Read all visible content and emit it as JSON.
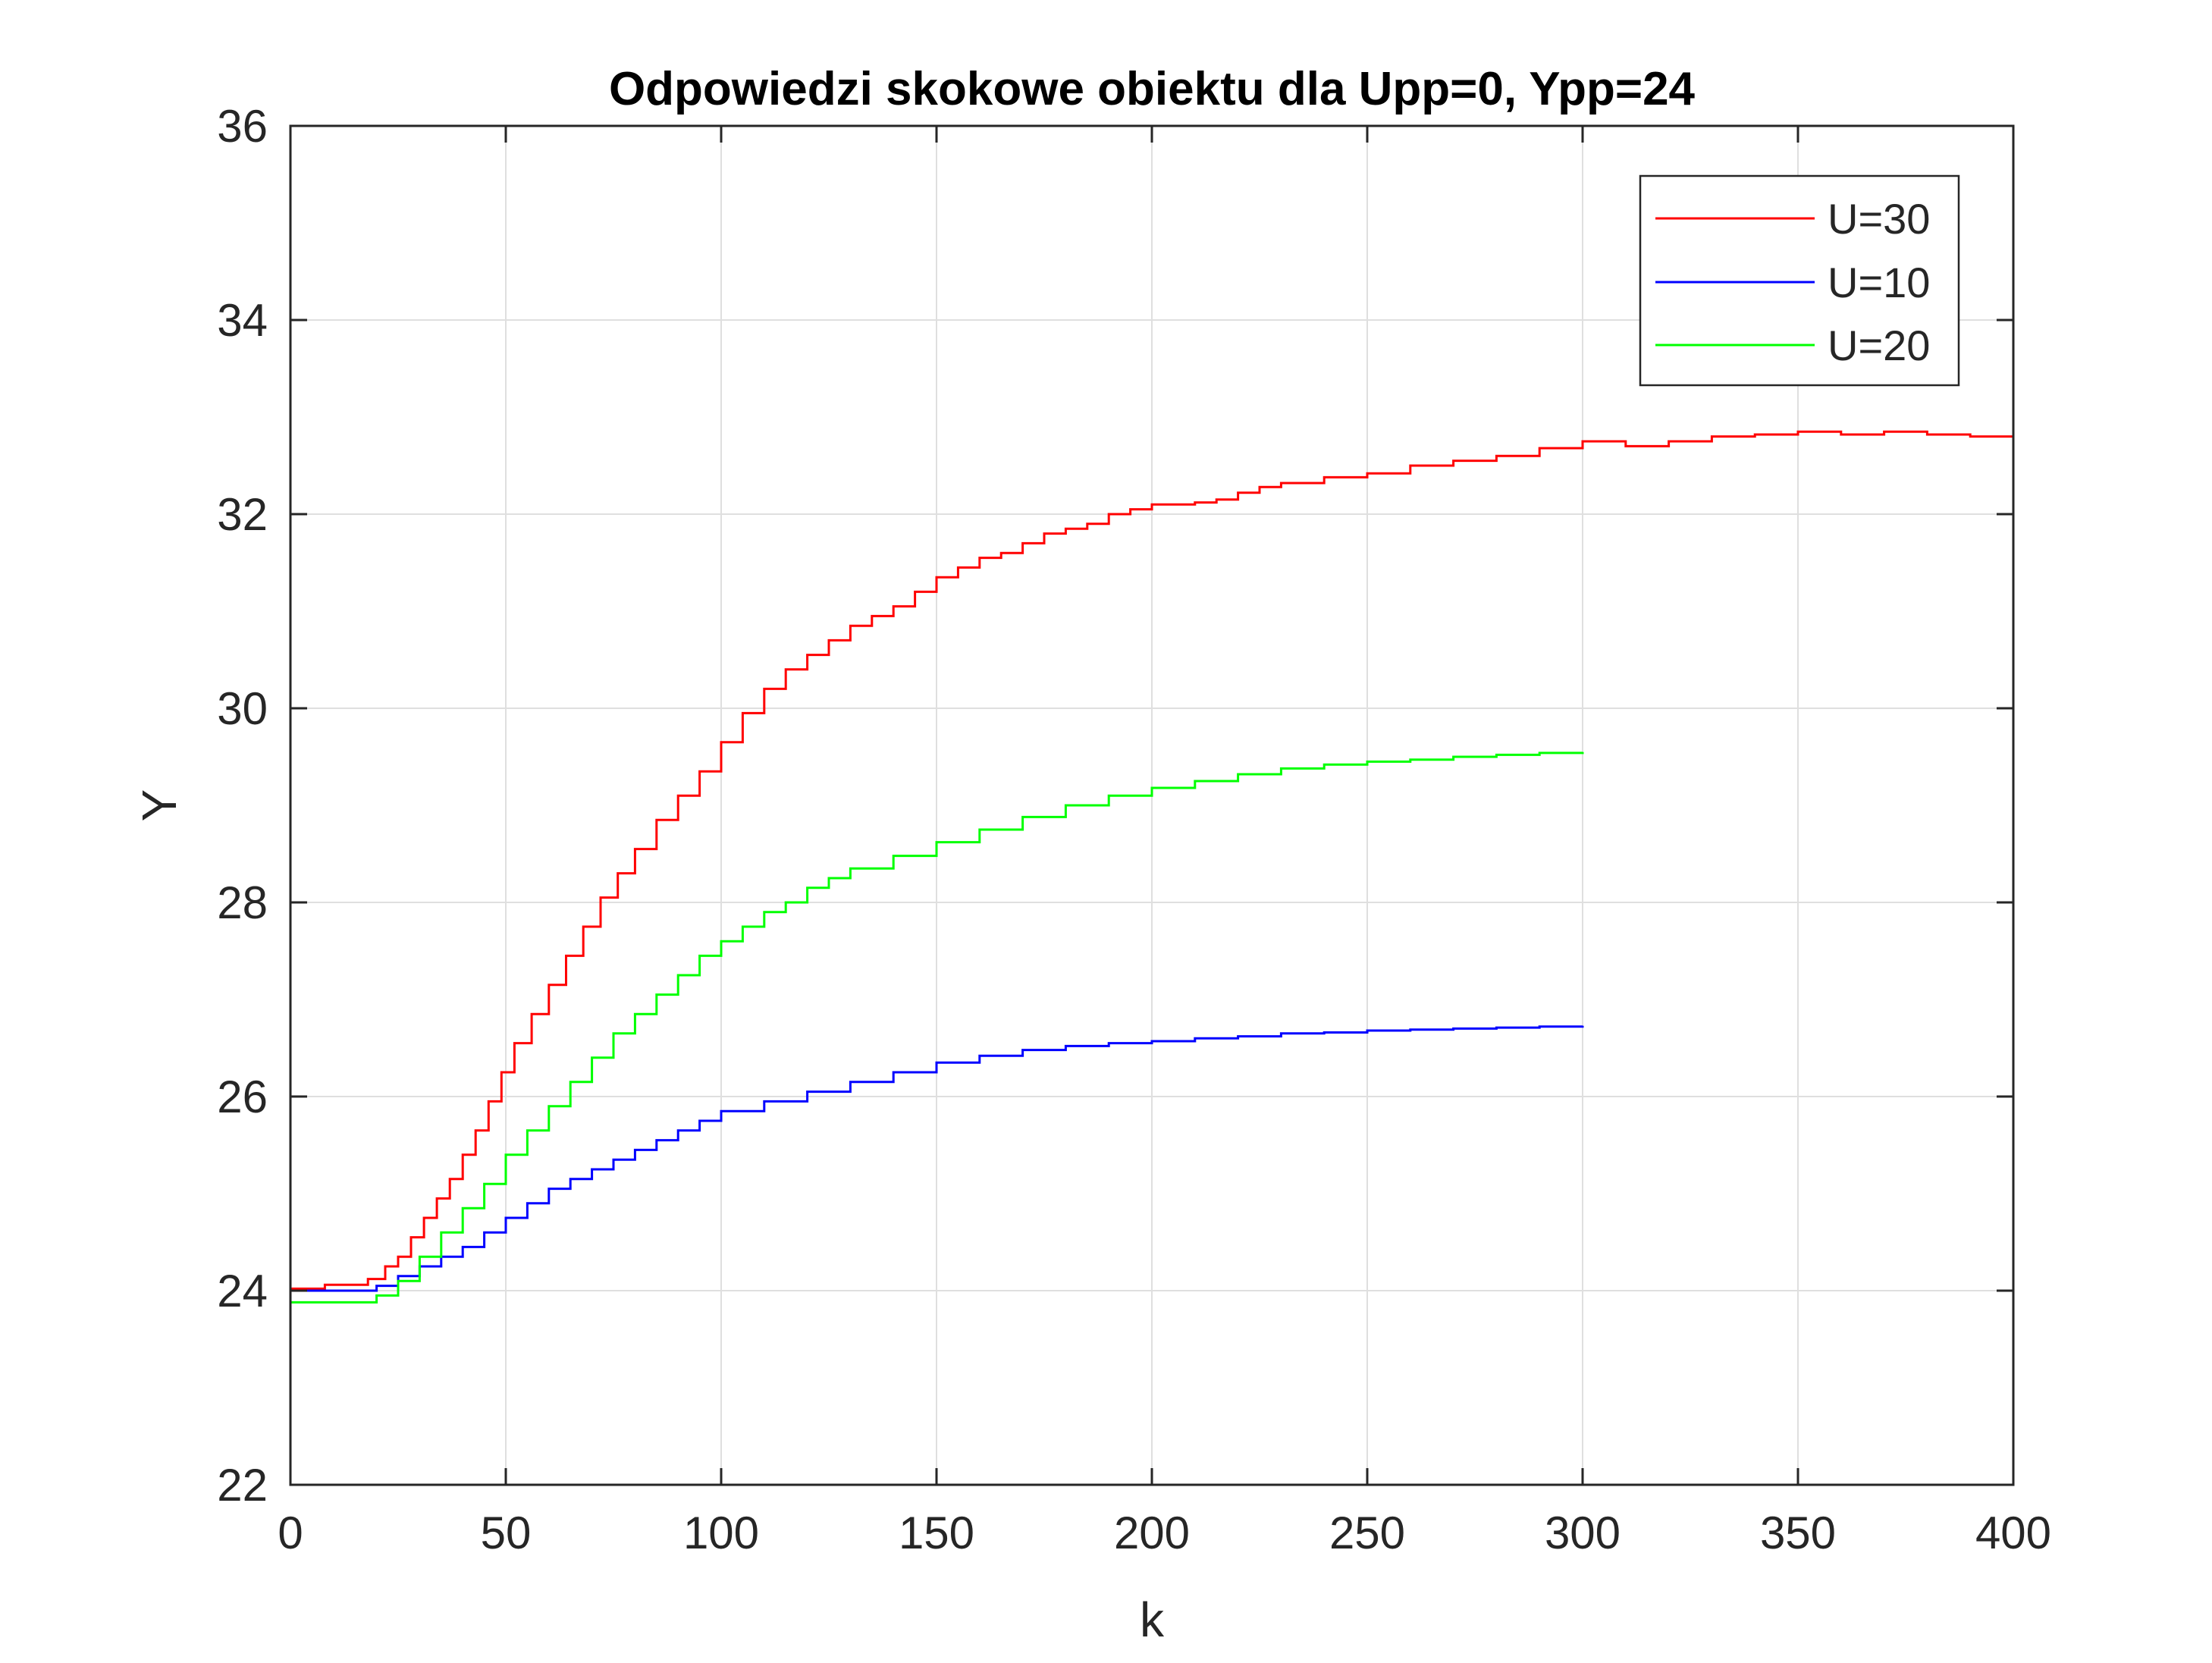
{
  "chart_data": {
    "type": "line",
    "title": "Odpowiedzi skokowe obiektu dla Upp=0, Ypp=24",
    "xlabel": "k",
    "ylabel": "Y",
    "xlim": [
      0,
      400
    ],
    "ylim": [
      22,
      36
    ],
    "xticks": [
      0,
      50,
      100,
      150,
      200,
      250,
      300,
      350,
      400
    ],
    "yticks": [
      22,
      24,
      26,
      28,
      30,
      32,
      34,
      36
    ],
    "grid": true,
    "legend_position": "top-right",
    "series": [
      {
        "name": "U=30",
        "color": "#ff0000",
        "points": [
          [
            0,
            24.02
          ],
          [
            7,
            24.02
          ],
          [
            8,
            24.06
          ],
          [
            15,
            24.06
          ],
          [
            18,
            24.12
          ],
          [
            22,
            24.25
          ],
          [
            25,
            24.35
          ],
          [
            28,
            24.55
          ],
          [
            31,
            24.75
          ],
          [
            34,
            24.95
          ],
          [
            37,
            25.15
          ],
          [
            40,
            25.4
          ],
          [
            43,
            25.65
          ],
          [
            46,
            25.95
          ],
          [
            49,
            26.25
          ],
          [
            52,
            26.55
          ],
          [
            56,
            26.85
          ],
          [
            60,
            27.15
          ],
          [
            64,
            27.45
          ],
          [
            68,
            27.75
          ],
          [
            72,
            28.05
          ],
          [
            76,
            28.3
          ],
          [
            80,
            28.55
          ],
          [
            85,
            28.85
          ],
          [
            90,
            29.1
          ],
          [
            95,
            29.35
          ],
          [
            100,
            29.65
          ],
          [
            105,
            29.95
          ],
          [
            110,
            30.2
          ],
          [
            115,
            30.4
          ],
          [
            120,
            30.55
          ],
          [
            125,
            30.7
          ],
          [
            130,
            30.85
          ],
          [
            135,
            30.95
          ],
          [
            140,
            31.05
          ],
          [
            145,
            31.2
          ],
          [
            150,
            31.35
          ],
          [
            155,
            31.45
          ],
          [
            160,
            31.55
          ],
          [
            165,
            31.6
          ],
          [
            170,
            31.7
          ],
          [
            175,
            31.8
          ],
          [
            180,
            31.85
          ],
          [
            185,
            31.9
          ],
          [
            190,
            32.0
          ],
          [
            195,
            32.05
          ],
          [
            200,
            32.1
          ],
          [
            210,
            32.12
          ],
          [
            215,
            32.15
          ],
          [
            220,
            32.22
          ],
          [
            225,
            32.28
          ],
          [
            230,
            32.32
          ],
          [
            240,
            32.38
          ],
          [
            250,
            32.42
          ],
          [
            260,
            32.5
          ],
          [
            270,
            32.55
          ],
          [
            280,
            32.6
          ],
          [
            290,
            32.68
          ],
          [
            300,
            32.75
          ],
          [
            310,
            32.7
          ],
          [
            320,
            32.75
          ],
          [
            330,
            32.8
          ],
          [
            340,
            32.82
          ],
          [
            350,
            32.85
          ],
          [
            360,
            32.82
          ],
          [
            370,
            32.85
          ],
          [
            380,
            32.82
          ],
          [
            390,
            32.8
          ],
          [
            400,
            32.8
          ]
        ]
      },
      {
        "name": "U=10",
        "color": "#0000ff",
        "points": [
          [
            0,
            24.0
          ],
          [
            15,
            24.0
          ],
          [
            20,
            24.05
          ],
          [
            25,
            24.15
          ],
          [
            30,
            24.25
          ],
          [
            35,
            24.35
          ],
          [
            40,
            24.45
          ],
          [
            45,
            24.6
          ],
          [
            50,
            24.75
          ],
          [
            55,
            24.9
          ],
          [
            60,
            25.05
          ],
          [
            65,
            25.15
          ],
          [
            70,
            25.25
          ],
          [
            75,
            25.35
          ],
          [
            80,
            25.45
          ],
          [
            85,
            25.55
          ],
          [
            90,
            25.65
          ],
          [
            95,
            25.75
          ],
          [
            100,
            25.85
          ],
          [
            110,
            25.95
          ],
          [
            120,
            26.05
          ],
          [
            130,
            26.15
          ],
          [
            140,
            26.25
          ],
          [
            150,
            26.35
          ],
          [
            160,
            26.42
          ],
          [
            170,
            26.48
          ],
          [
            180,
            26.52
          ],
          [
            190,
            26.55
          ],
          [
            200,
            26.57
          ],
          [
            210,
            26.6
          ],
          [
            220,
            26.62
          ],
          [
            230,
            26.65
          ],
          [
            240,
            26.66
          ],
          [
            250,
            26.68
          ],
          [
            260,
            26.69
          ],
          [
            270,
            26.7
          ],
          [
            280,
            26.71
          ],
          [
            290,
            26.72
          ],
          [
            300,
            26.73
          ]
        ]
      },
      {
        "name": "U=20",
        "color": "#00ff00",
        "points": [
          [
            0,
            23.88
          ],
          [
            15,
            23.88
          ],
          [
            20,
            23.95
          ],
          [
            25,
            24.1
          ],
          [
            30,
            24.35
          ],
          [
            35,
            24.6
          ],
          [
            40,
            24.85
          ],
          [
            45,
            25.1
          ],
          [
            50,
            25.4
          ],
          [
            55,
            25.65
          ],
          [
            60,
            25.9
          ],
          [
            65,
            26.15
          ],
          [
            70,
            26.4
          ],
          [
            75,
            26.65
          ],
          [
            80,
            26.85
          ],
          [
            85,
            27.05
          ],
          [
            90,
            27.25
          ],
          [
            95,
            27.45
          ],
          [
            100,
            27.6
          ],
          [
            105,
            27.75
          ],
          [
            110,
            27.9
          ],
          [
            115,
            28.0
          ],
          [
            120,
            28.15
          ],
          [
            125,
            28.25
          ],
          [
            130,
            28.35
          ],
          [
            140,
            28.48
          ],
          [
            150,
            28.62
          ],
          [
            160,
            28.75
          ],
          [
            170,
            28.88
          ],
          [
            180,
            29.0
          ],
          [
            190,
            29.1
          ],
          [
            200,
            29.18
          ],
          [
            210,
            29.25
          ],
          [
            220,
            29.32
          ],
          [
            230,
            29.38
          ],
          [
            240,
            29.42
          ],
          [
            250,
            29.45
          ],
          [
            260,
            29.47
          ],
          [
            270,
            29.5
          ],
          [
            280,
            29.52
          ],
          [
            290,
            29.54
          ],
          [
            300,
            29.55
          ]
        ]
      }
    ]
  }
}
